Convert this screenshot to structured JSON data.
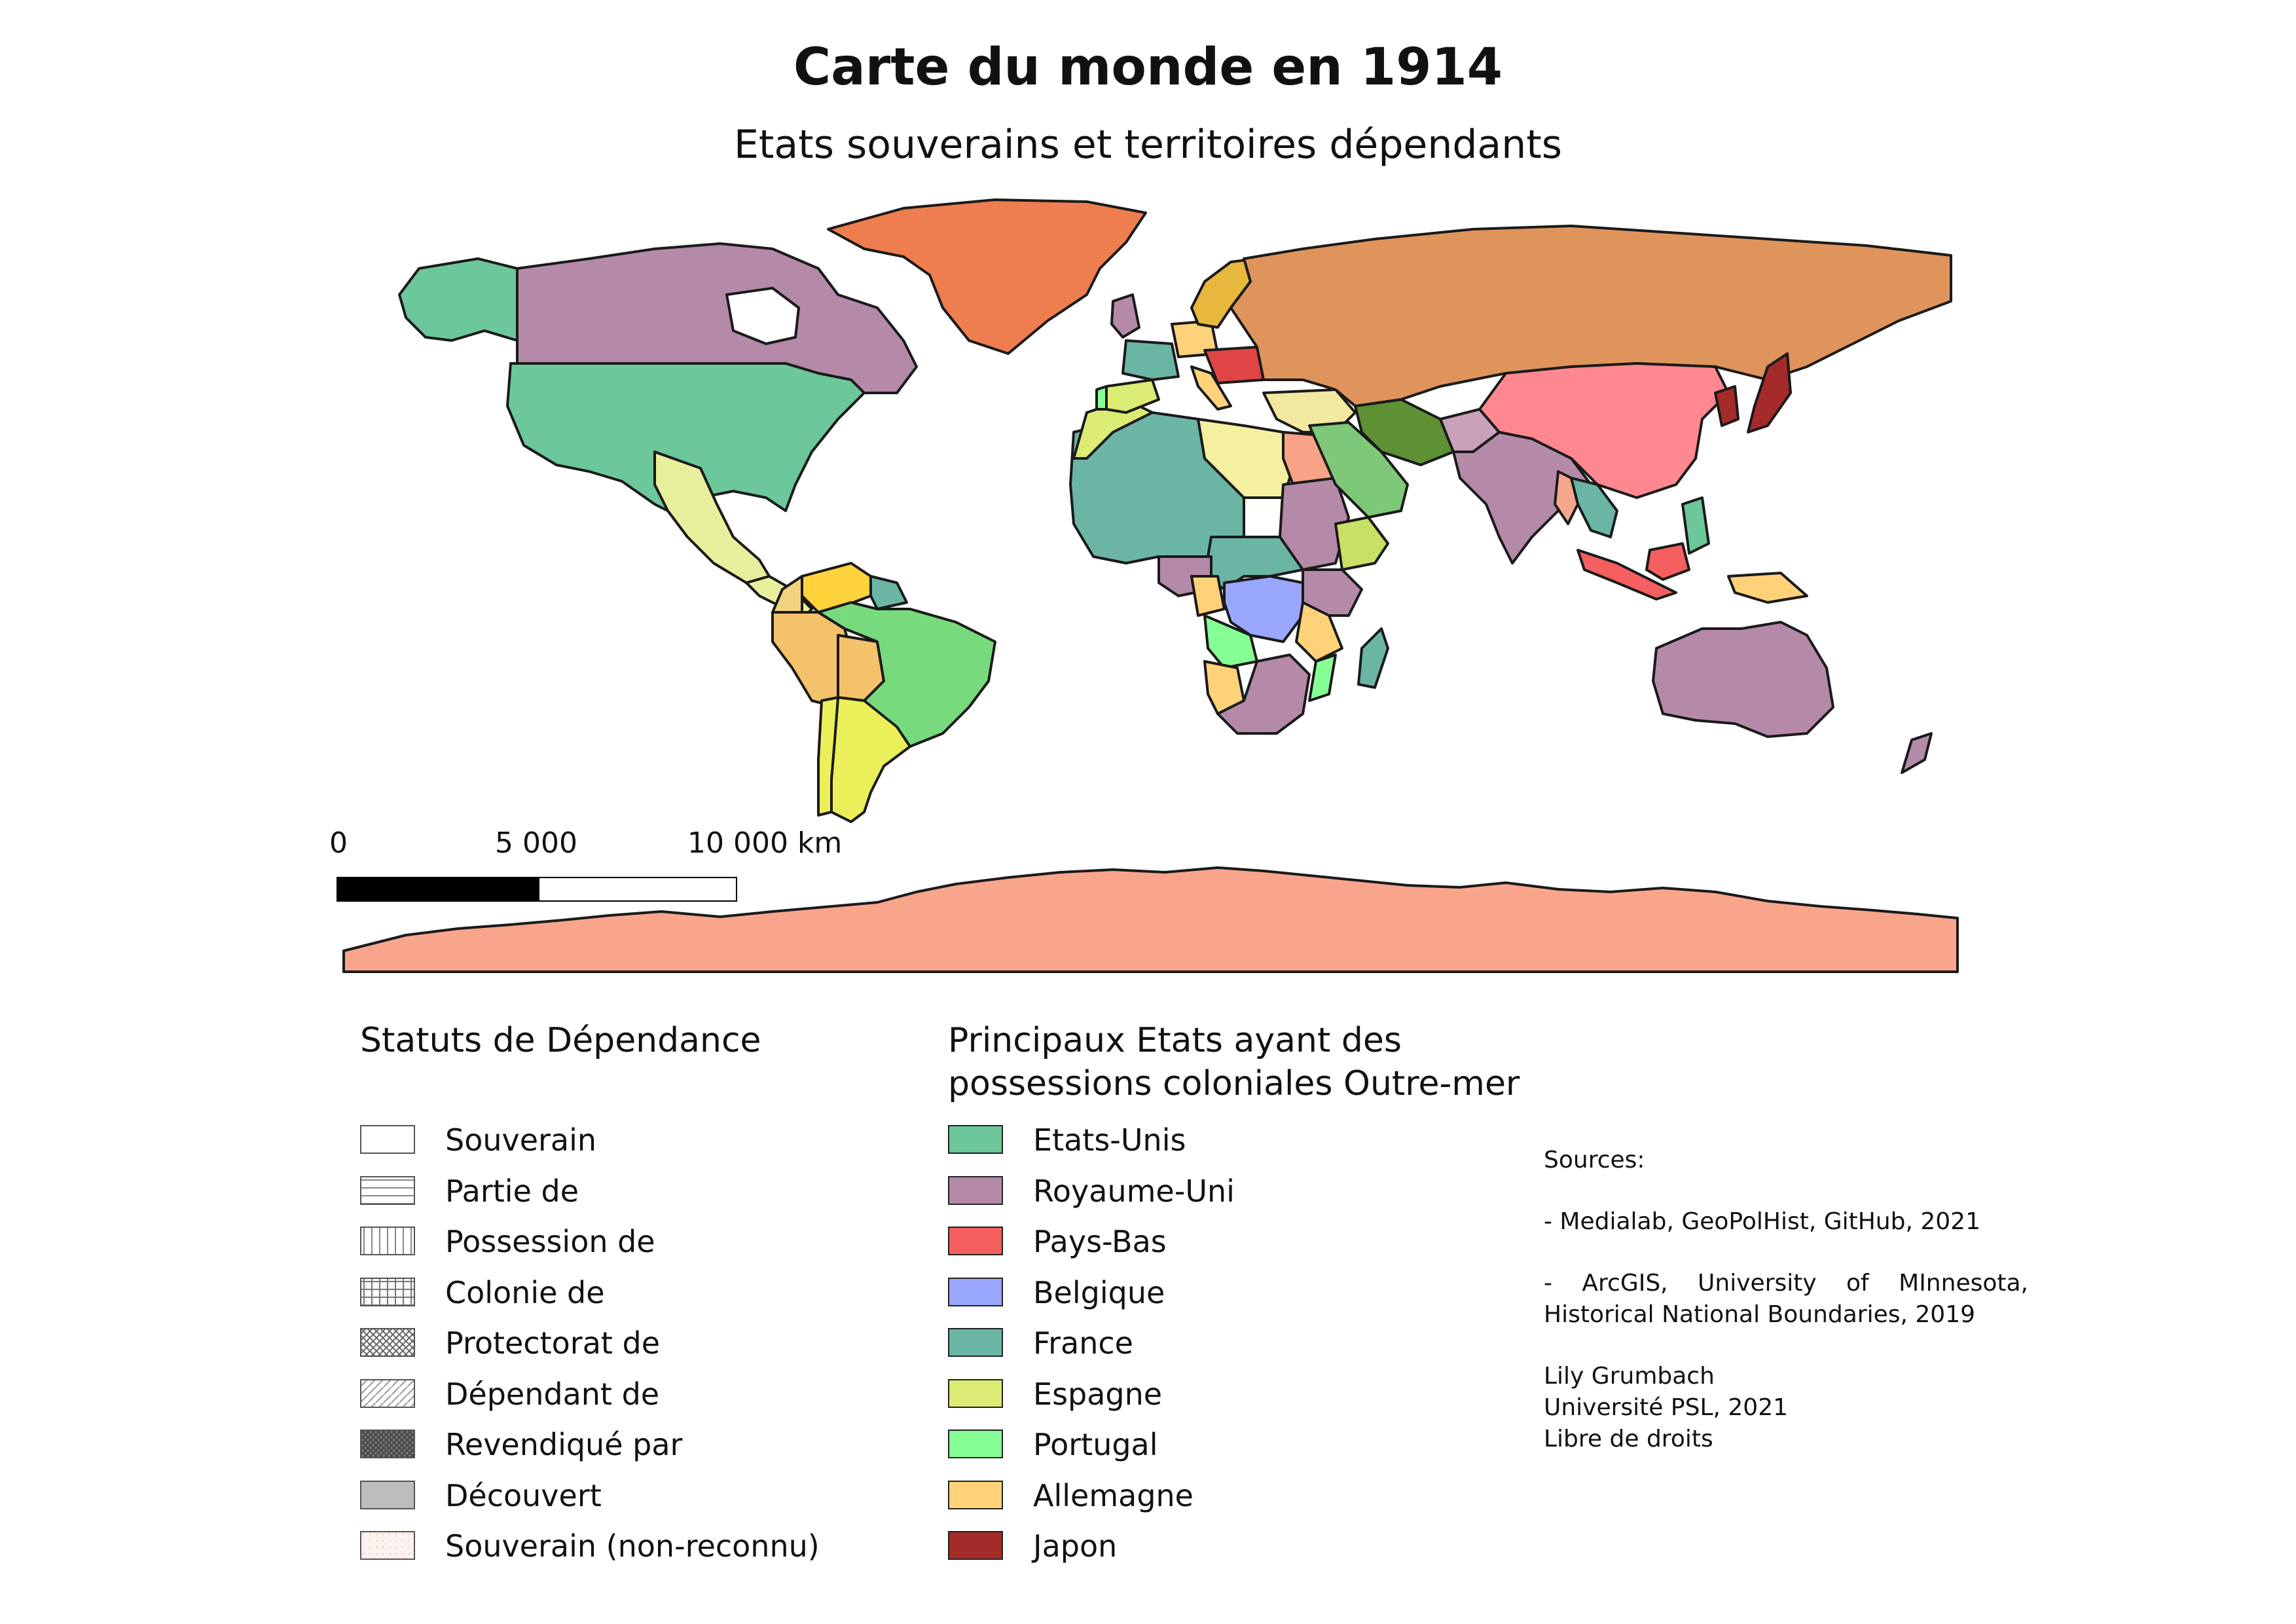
{
  "map": {
    "title": "Carte du monde en 1914",
    "subtitle": "Etats souverains et territoires dépendants"
  },
  "scale_bar": {
    "labels": [
      "0",
      "5 000",
      "10 000 km"
    ]
  },
  "legend_status": {
    "title": "Statuts de Dépendance",
    "items": [
      {
        "label": "Souverain",
        "pattern": "blank"
      },
      {
        "label": "Partie de",
        "pattern": "horizontal-lines"
      },
      {
        "label": "Possession de",
        "pattern": "vertical-lines"
      },
      {
        "label": "Colonie de",
        "pattern": "grid"
      },
      {
        "label": "Protectorat de",
        "pattern": "cross-hatch"
      },
      {
        "label": "Dépendant de",
        "pattern": "diagonal-lines"
      },
      {
        "label": "Revendiqué par",
        "pattern": "dense-dark"
      },
      {
        "label": "Découvert",
        "pattern": "solid-grey"
      },
      {
        "label": "Souverain (non-reconnu)",
        "pattern": "light-pink"
      }
    ]
  },
  "legend_powers": {
    "title_line1": "Principaux Etats ayant des",
    "title_line2": "possessions coloniales Outre-mer",
    "items": [
      {
        "label": "Etats-Unis",
        "color": "#6cc79a"
      },
      {
        "label": "Royaume-Uni",
        "color": "#b48aa8"
      },
      {
        "label": "Pays-Bas",
        "color": "#f55f5f"
      },
      {
        "label": "Belgique",
        "color": "#9aa7ff"
      },
      {
        "label": "France",
        "color": "#6bb5a5"
      },
      {
        "label": "Espagne",
        "color": "#dbeb73"
      },
      {
        "label": "Portugal",
        "color": "#86ff95"
      },
      {
        "label": "Allemagne",
        "color": "#ffd27a"
      },
      {
        "label": "Japon",
        "color": "#a52a2a"
      }
    ]
  },
  "regions_colors": {
    "russia": "#df945c",
    "greenland": "#ee7d4f",
    "antarctica": "#f8a58c",
    "china": "#ff8890",
    "brazil": "#77db7e",
    "argentina": "#ebf05a",
    "persia": "#5e9134",
    "arabia": "#7ec87a",
    "ottoman": "#f3e8a0",
    "mexico": "#e8ef9c",
    "peru_bolivia": "#f4c26a",
    "venezuela": "#ffd33b",
    "scandinavia": "#e7b83d",
    "austria": "#e04545",
    "egypt": "#f8a387",
    "ethiopia": "#c9e066"
  },
  "notes": {
    "sources_title": "Sources:",
    "source1": "- Medialab, GeoPolHist, GitHub, 2021",
    "source2_line1": "- ArcGIS, University of MInnesota,",
    "source2_line2": "Historical National Boundaries, 2019",
    "author": "Lily Grumbach",
    "institution": "Université PSL, 2021",
    "license": "Libre de droits"
  }
}
